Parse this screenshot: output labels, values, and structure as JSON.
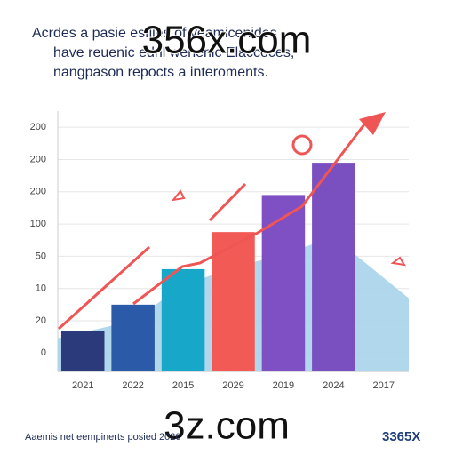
{
  "title_lines": [
    "Acrdes a pasie esfiies of yeamicenides",
    "have reuenic ednl wenenic Elaccoces,",
    "nangpason repocts a interoments."
  ],
  "watermark_top": "356x.com",
  "watermark_bottom": "3z.com",
  "footer": "Aaemis net eempinerts posied 2020",
  "logo": "3365X",
  "chart_data": {
    "type": "bar",
    "categories": [
      "2021",
      "2022",
      "2015",
      "2029",
      "2019",
      "2024",
      "2017"
    ],
    "series": [
      {
        "values": [
          0.68,
          1.5,
          2.6,
          3.75,
          4.9,
          5.9,
          null
        ],
        "colors": [
          "#2b3a7a",
          "#2b5ba8",
          "#17a7c8",
          "#f25a55",
          "#7f4fc4",
          "#7a4fc0",
          null
        ]
      }
    ],
    "area": {
      "values": [
        0.46,
        1.0,
        2.1,
        2.65,
        3.06,
        3.6,
        1.7
      ],
      "color": "#a9d3ea"
    },
    "ylim": [
      -0.57,
      7.5
    ],
    "yticks": [
      {
        "value": 0,
        "label": "0"
      },
      {
        "value": 1,
        "label": "20"
      },
      {
        "value": 2,
        "label": "10"
      },
      {
        "value": 3,
        "label": "50"
      },
      {
        "value": 4,
        "label": "100"
      },
      {
        "value": 5,
        "label": "200"
      },
      {
        "value": 6,
        "label": "200"
      },
      {
        "value": 7,
        "label": "200"
      }
    ],
    "grid": true
  }
}
